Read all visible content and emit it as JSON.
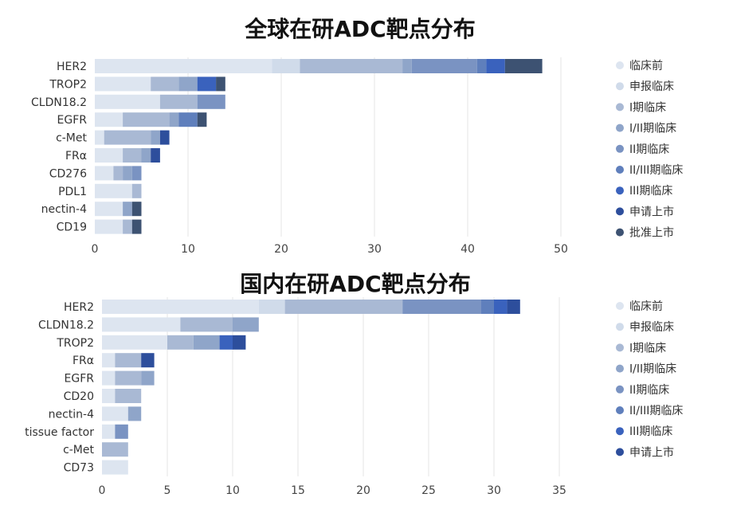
{
  "chart_data": [
    {
      "type": "bar",
      "orientation": "horizontal",
      "stacked": true,
      "title": "全球在研ADC靶点分布",
      "xlabel": "",
      "ylabel": "",
      "xlim": [
        0,
        50
      ],
      "xticks": [
        0,
        10,
        20,
        30,
        40,
        50
      ],
      "grid": true,
      "legend_position": "right",
      "categories": [
        "HER2",
        "TROP2",
        "CLDN18.2",
        "EGFR",
        "c-Met",
        "FRα",
        "CD276",
        "PDL1",
        "nectin-4",
        "CD19"
      ],
      "series": [
        {
          "name": "临床前",
          "color": "#dde5f0",
          "values": [
            19,
            6,
            7,
            3,
            1,
            3,
            2,
            4,
            3,
            3
          ]
        },
        {
          "name": "申报临床",
          "color": "#d0dbea",
          "values": [
            3,
            0,
            0,
            0,
            0,
            0,
            0,
            0,
            0,
            0
          ]
        },
        {
          "name": "I期临床",
          "color": "#a9b9d4",
          "values": [
            11,
            3,
            4,
            5,
            5,
            2,
            1,
            1,
            0,
            1
          ]
        },
        {
          "name": "I/II期临床",
          "color": "#8fa5c9",
          "values": [
            1,
            2,
            0,
            1,
            1,
            1,
            1,
            0,
            1,
            0
          ]
        },
        {
          "name": "II期临床",
          "color": "#7a93c2",
          "values": [
            7,
            0,
            3,
            0,
            0,
            0,
            1,
            0,
            0,
            0
          ]
        },
        {
          "name": "II/III期临床",
          "color": "#5f7fbc",
          "values": [
            1,
            0,
            0,
            2,
            0,
            0,
            0,
            0,
            0,
            0
          ]
        },
        {
          "name": "III期临床",
          "color": "#3a62bd",
          "values": [
            2,
            2,
            0,
            0,
            0,
            0,
            0,
            0,
            0,
            0
          ]
        },
        {
          "name": "申请上市",
          "color": "#2d4e9c",
          "values": [
            0,
            0,
            0,
            0,
            1,
            1,
            0,
            0,
            0,
            0
          ]
        },
        {
          "name": "批准上市",
          "color": "#3d5272",
          "values": [
            4,
            1,
            0,
            1,
            0,
            0,
            0,
            0,
            1,
            1
          ]
        }
      ]
    },
    {
      "type": "bar",
      "orientation": "horizontal",
      "stacked": true,
      "title": "国内在研ADC靶点分布",
      "xlabel": "",
      "ylabel": "",
      "xlim": [
        0,
        35
      ],
      "xticks": [
        0,
        5,
        10,
        15,
        20,
        25,
        30,
        35
      ],
      "grid": true,
      "legend_position": "right",
      "categories": [
        "HER2",
        "CLDN18.2",
        "TROP2",
        "FRα",
        "EGFR",
        "CD20",
        "nectin-4",
        "tissue factor",
        "c-Met",
        "CD73"
      ],
      "series": [
        {
          "name": "临床前",
          "color": "#dde5f0",
          "values": [
            12,
            6,
            5,
            1,
            1,
            1,
            2,
            1,
            0,
            2
          ]
        },
        {
          "name": "申报临床",
          "color": "#d0dbea",
          "values": [
            2,
            0,
            0,
            0,
            0,
            0,
            0,
            0,
            0,
            0
          ]
        },
        {
          "name": "I期临床",
          "color": "#a9b9d4",
          "values": [
            9,
            4,
            2,
            2,
            2,
            2,
            0,
            0,
            2,
            0
          ]
        },
        {
          "name": "I/II期临床",
          "color": "#8fa5c9",
          "values": [
            0,
            2,
            2,
            0,
            1,
            0,
            1,
            0,
            0,
            0
          ]
        },
        {
          "name": "II期临床",
          "color": "#7a93c2",
          "values": [
            6,
            0,
            0,
            0,
            0,
            0,
            0,
            1,
            0,
            0
          ]
        },
        {
          "name": "II/III期临床",
          "color": "#5f7fbc",
          "values": [
            1,
            0,
            0,
            0,
            0,
            0,
            0,
            0,
            0,
            0
          ]
        },
        {
          "name": "III期临床",
          "color": "#3a62bd",
          "values": [
            1,
            0,
            1,
            0,
            0,
            0,
            0,
            0,
            0,
            0
          ]
        },
        {
          "name": "申请上市",
          "color": "#2d4e9c",
          "values": [
            1,
            0,
            1,
            1,
            0,
            0,
            0,
            0,
            0,
            0
          ]
        }
      ]
    }
  ]
}
